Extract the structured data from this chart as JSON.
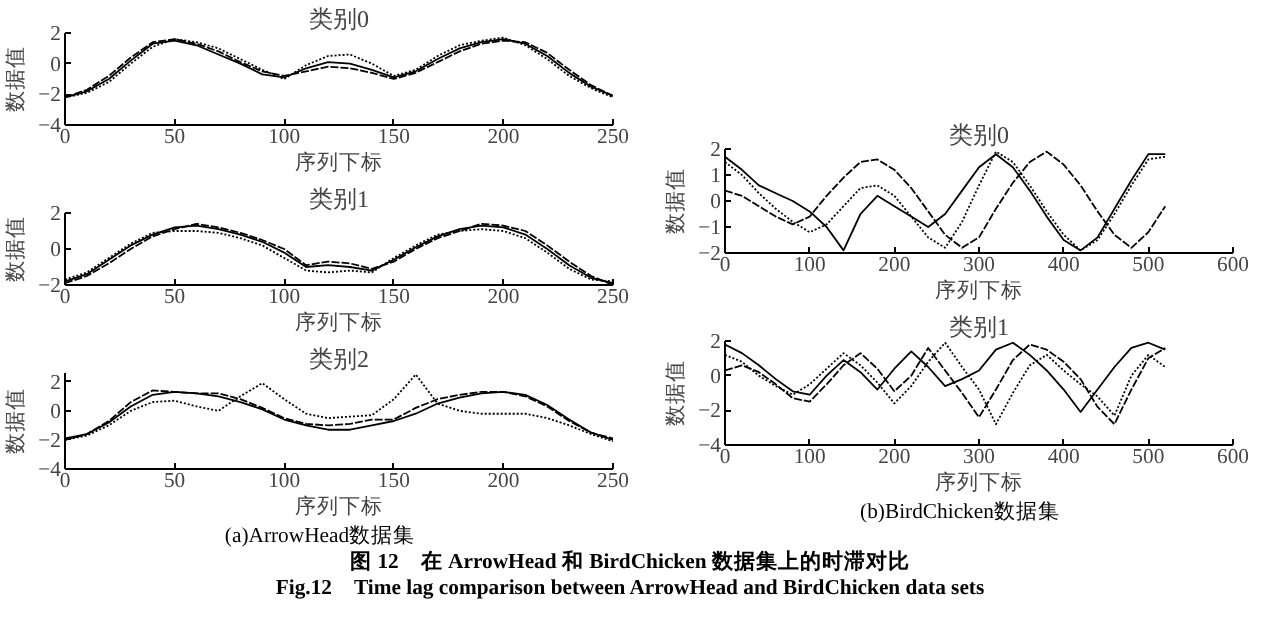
{
  "chart_data": [
    {
      "type": "line",
      "title": "类别0",
      "xlabel": "序列下标",
      "ylabel": "数据值",
      "x": [
        0,
        10,
        20,
        30,
        40,
        50,
        60,
        70,
        80,
        90,
        100,
        110,
        120,
        130,
        140,
        150,
        160,
        170,
        180,
        190,
        200,
        210,
        220,
        230,
        240,
        250
      ],
      "xlim": [
        0,
        250
      ],
      "xticks": [
        0,
        50,
        100,
        150,
        200,
        250
      ],
      "ylim": [
        -4,
        2
      ],
      "yticks": [
        -4,
        -2,
        0,
        2
      ],
      "series": [
        {
          "color": "#000000",
          "line_style": "solid",
          "values": [
            -2.2,
            -1.8,
            -1.0,
            0.2,
            1.3,
            1.5,
            1.2,
            0.6,
            0.0,
            -0.7,
            -0.9,
            -0.3,
            0.1,
            0.0,
            -0.4,
            -0.9,
            -0.5,
            0.3,
            1.0,
            1.4,
            1.6,
            1.3,
            0.5,
            -0.6,
            -1.5,
            -2.1
          ]
        },
        {
          "color": "#000000",
          "line_style": "dashed",
          "values": [
            -2.2,
            -1.7,
            -0.8,
            0.4,
            1.4,
            1.6,
            1.3,
            0.8,
            0.1,
            -0.5,
            -0.8,
            -0.5,
            -0.2,
            -0.3,
            -0.6,
            -1.0,
            -0.6,
            0.1,
            0.8,
            1.3,
            1.5,
            1.4,
            0.7,
            -0.4,
            -1.4,
            -2.1
          ]
        },
        {
          "color": "#000000",
          "line_style": "dotted",
          "values": [
            -2.2,
            -1.9,
            -1.2,
            0.0,
            1.1,
            1.6,
            1.4,
            1.0,
            0.3,
            -0.4,
            -1.0,
            -0.1,
            0.5,
            0.6,
            0.0,
            -0.8,
            -0.4,
            0.5,
            1.2,
            1.5,
            1.7,
            1.2,
            0.3,
            -0.8,
            -1.6,
            -2.2
          ]
        }
      ]
    },
    {
      "type": "line",
      "title": "类别1",
      "xlabel": "序列下标",
      "ylabel": "数据值",
      "x": [
        0,
        10,
        20,
        30,
        40,
        50,
        60,
        70,
        80,
        90,
        100,
        110,
        120,
        130,
        140,
        150,
        160,
        170,
        180,
        190,
        200,
        210,
        220,
        230,
        240,
        250
      ],
      "xlim": [
        0,
        250
      ],
      "xticks": [
        0,
        50,
        100,
        150,
        200,
        250
      ],
      "ylim": [
        -2,
        2
      ],
      "yticks": [
        -2,
        0,
        2
      ],
      "series": [
        {
          "color": "#000000",
          "line_style": "solid",
          "values": [
            -1.8,
            -1.4,
            -0.6,
            0.2,
            0.8,
            1.2,
            1.3,
            1.1,
            0.8,
            0.4,
            -0.2,
            -1.0,
            -0.9,
            -1.0,
            -1.2,
            -0.6,
            0.1,
            0.7,
            1.1,
            1.3,
            1.2,
            0.8,
            0.0,
            -0.9,
            -1.6,
            -1.9
          ]
        },
        {
          "color": "#000000",
          "line_style": "dashed",
          "values": [
            -1.9,
            -1.5,
            -0.8,
            0.0,
            0.7,
            1.1,
            1.4,
            1.2,
            0.9,
            0.5,
            0.0,
            -0.9,
            -0.7,
            -0.8,
            -1.1,
            -0.7,
            0.0,
            0.6,
            1.0,
            1.4,
            1.3,
            1.0,
            0.2,
            -0.7,
            -1.5,
            -2.0
          ]
        },
        {
          "color": "#000000",
          "line_style": "dotted",
          "values": [
            -1.7,
            -1.3,
            -0.5,
            0.3,
            0.9,
            1.0,
            1.0,
            0.9,
            0.6,
            0.2,
            -0.5,
            -1.2,
            -1.3,
            -1.2,
            -1.3,
            -0.5,
            0.2,
            0.8,
            1.0,
            1.1,
            1.0,
            0.6,
            -0.2,
            -1.1,
            -1.7,
            -1.8
          ]
        }
      ]
    },
    {
      "type": "line",
      "title": "类别2",
      "xlabel": "序列下标",
      "ylabel": "数据值",
      "annotations": [
        "(a)ArrowHead数据集"
      ],
      "x": [
        0,
        10,
        20,
        30,
        40,
        50,
        60,
        70,
        80,
        90,
        100,
        110,
        120,
        130,
        140,
        150,
        160,
        170,
        180,
        190,
        200,
        210,
        220,
        230,
        240,
        250
      ],
      "xlim": [
        0,
        250
      ],
      "xticks": [
        0,
        50,
        100,
        150,
        200,
        250
      ],
      "ylim": [
        -4,
        2.6
      ],
      "yticks": [
        -4,
        -2,
        0,
        2
      ],
      "series": [
        {
          "color": "#000000",
          "line_style": "solid",
          "values": [
            -1.9,
            -1.6,
            -0.8,
            0.3,
            1.1,
            1.3,
            1.2,
            1.0,
            0.6,
            0.1,
            -0.6,
            -1.0,
            -1.3,
            -1.3,
            -1.0,
            -0.7,
            -0.2,
            0.5,
            0.9,
            1.2,
            1.3,
            1.1,
            0.4,
            -0.6,
            -1.5,
            -2.0
          ]
        },
        {
          "color": "#000000",
          "line_style": "dotted",
          "values": [
            -2.0,
            -1.7,
            -1.0,
            0.0,
            0.6,
            0.7,
            0.3,
            0.0,
            1.0,
            1.9,
            0.8,
            -0.2,
            -0.5,
            -0.4,
            -0.3,
            0.8,
            2.5,
            0.5,
            0.0,
            -0.2,
            -0.2,
            -0.2,
            -0.5,
            -1.0,
            -1.6,
            -2.1
          ]
        },
        {
          "color": "#000000",
          "line_style": "dashed",
          "values": [
            -2.0,
            -1.6,
            -0.7,
            0.6,
            1.4,
            1.3,
            1.2,
            1.2,
            0.8,
            0.2,
            -0.5,
            -0.9,
            -1.0,
            -0.9,
            -0.6,
            -0.6,
            0.2,
            0.8,
            1.1,
            1.3,
            1.3,
            1.0,
            0.3,
            -0.7,
            -1.5,
            -1.9
          ]
        }
      ]
    },
    {
      "type": "line",
      "title": "类别0",
      "xlabel": "序列下标",
      "ylabel": "数据值",
      "x": [
        0,
        20,
        40,
        60,
        80,
        100,
        120,
        140,
        160,
        180,
        200,
        220,
        240,
        260,
        280,
        300,
        320,
        340,
        360,
        380,
        400,
        420,
        440,
        460,
        480,
        500,
        520
      ],
      "xlim": [
        0,
        600
      ],
      "xticks": [
        0,
        100,
        200,
        300,
        400,
        500,
        600
      ],
      "ylim": [
        -2,
        2
      ],
      "yticks": [
        -2,
        -1,
        0,
        1,
        2
      ],
      "series": [
        {
          "color": "#000000",
          "line_style": "solid",
          "values": [
            1.7,
            1.2,
            0.6,
            0.3,
            0.0,
            -0.4,
            -1.0,
            -1.9,
            -0.5,
            0.2,
            -0.2,
            -0.6,
            -1.0,
            -0.5,
            0.4,
            1.3,
            1.8,
            1.3,
            0.4,
            -0.6,
            -1.5,
            -1.9,
            -1.4,
            -0.3,
            0.8,
            1.8,
            1.8
          ]
        },
        {
          "color": "#000000",
          "line_style": "dashed",
          "values": [
            0.4,
            0.2,
            -0.2,
            -0.6,
            -0.9,
            -0.6,
            0.2,
            0.9,
            1.5,
            1.6,
            1.2,
            0.5,
            -0.4,
            -1.3,
            -1.8,
            -1.4,
            -0.3,
            0.7,
            1.5,
            1.9,
            1.4,
            0.6,
            -0.4,
            -1.3,
            -1.8,
            -1.2,
            -0.2
          ]
        },
        {
          "color": "#000000",
          "line_style": "dotted",
          "values": [
            1.5,
            1.0,
            0.3,
            -0.3,
            -0.8,
            -1.2,
            -0.9,
            -0.2,
            0.5,
            0.6,
            0.2,
            -0.6,
            -1.4,
            -1.8,
            -0.8,
            0.6,
            1.9,
            1.5,
            0.6,
            -0.4,
            -1.3,
            -1.9,
            -1.5,
            -0.5,
            0.6,
            1.6,
            1.7
          ]
        }
      ]
    },
    {
      "type": "line",
      "title": "类别1",
      "xlabel": "序列下标",
      "ylabel": "数据值",
      "annotations": [
        "(b)BirdChicken数据集",
        "图 12　在 ArrowHead 和 BirdChicken 数据集上的时滞对比",
        "Fig.12　Time lag comparison between ArrowHead and BirdChicken data sets"
      ],
      "x": [
        0,
        20,
        40,
        60,
        80,
        100,
        120,
        140,
        160,
        180,
        200,
        220,
        240,
        260,
        280,
        300,
        320,
        340,
        360,
        380,
        400,
        420,
        440,
        460,
        480,
        500,
        520
      ],
      "xlim": [
        0,
        600
      ],
      "xticks": [
        0,
        100,
        200,
        300,
        400,
        500,
        600
      ],
      "ylim": [
        -4,
        2
      ],
      "yticks": [
        -4,
        -2,
        0,
        2
      ],
      "series": [
        {
          "color": "#000000",
          "line_style": "solid",
          "values": [
            1.8,
            1.3,
            0.6,
            -0.2,
            -0.9,
            -1.1,
            0.0,
            0.9,
            0.2,
            -0.8,
            0.4,
            1.4,
            0.5,
            -0.6,
            -0.2,
            0.3,
            1.5,
            1.9,
            1.2,
            0.3,
            -0.8,
            -2.1,
            -0.8,
            0.5,
            1.6,
            1.9,
            1.5
          ]
        },
        {
          "color": "#000000",
          "line_style": "dashed",
          "values": [
            0.3,
            0.6,
            0.2,
            -0.5,
            -1.3,
            -1.5,
            -0.5,
            0.6,
            1.3,
            0.4,
            -0.9,
            0.0,
            1.6,
            0.3,
            -1.0,
            -2.4,
            -0.8,
            0.9,
            1.8,
            1.5,
            0.8,
            -0.2,
            -1.8,
            -2.8,
            -0.8,
            1.0,
            1.6
          ]
        },
        {
          "color": "#000000",
          "line_style": "dotted",
          "values": [
            1.2,
            0.8,
            0.0,
            -0.6,
            -1.1,
            -0.5,
            0.4,
            1.3,
            0.6,
            -0.4,
            -1.6,
            -0.6,
            0.8,
            1.9,
            0.5,
            -0.8,
            -2.8,
            -1.0,
            0.6,
            1.2,
            0.3,
            -0.5,
            -1.2,
            -2.3,
            0.0,
            1.2,
            0.5
          ]
        }
      ]
    }
  ]
}
